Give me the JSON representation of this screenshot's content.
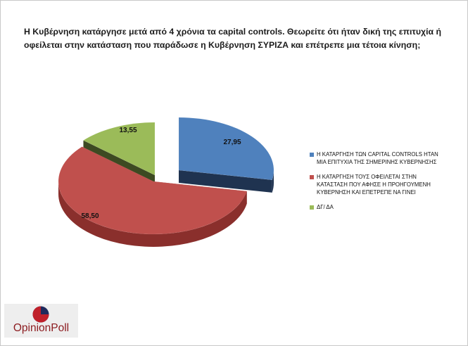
{
  "title": {
    "line1": "Η Κυβέρνηση  κατάργησε μετά από 4 χρόνια τα capital controls. Θεωρείτε ότι ήταν δική της επιτυχία ή",
    "line2": "οφείλεται στην κατάσταση που παράδωσε η Κυβέρνηση ΣΥΡΙΖΑ και επέτρεπε μια τέτοια κίνηση;"
  },
  "chart_data": {
    "type": "pie",
    "subtype": "3d-exploded",
    "legend_position": "right",
    "series": [
      {
        "name": "Η ΚΑΤΑΡΓΗΣΗ ΤΩΝ CAPITAL CONTROLS ΗΤΑΝ ΜΙΑ ΕΠΙΤΥΧΙΑ ΤΗΣ ΣΗΜΕΡΙΝΗΣ ΚΥΒΕΡΝΗΣΗΣ",
        "legend_lines": [
          "Η ΚΑΤΑΡΓΗΣΗ ΤΩΝ CAPITAL CONTROLS ΗΤΑΝ",
          "ΜΙΑ ΕΠΙΤΥΧΙΑ ΤΗΣ ΣΗΜΕΡΙΝΗΣ ΚΥΒΕΡΝΗΣΗΣ"
        ],
        "value": 27.95,
        "label": "27,95",
        "color": "#4f81bd",
        "side_color": "#1f3350"
      },
      {
        "name": "Η ΚΑΤΑΡΓΗΣΗ ΤΟΥΣ ΟΦΕΙΛΕΤΑΙ ΣΤΗΝ ΚΑΤΑΣΤΑΣΗ ΠΟΥ ΑΦΗΣΕ Η ΠΡΟΗΓΟΥΜΕΝΗ ΚΥΒΕΡΝΗΣΗ ΚΑΙ ΕΠΕΤΡΕΠΕ ΝΑ ΓΙΝΕΙ",
        "legend_lines": [
          "Η ΚΑΤΑΡΓΗΣΗ ΤΟΥΣ ΟΦΕΙΛΕΤΑΙ ΣΤΗΝ",
          "ΚΑΤΑΣΤΑΣΗ ΠΟΥ ΑΦΗΣΕ Η ΠΡΟΗΓΟΥΜΕΝΗ",
          "ΚΥΒΕΡΝΗΣΗ ΚΑΙ ΕΠΕΤΡΕΠΕ ΝΑ ΓΙΝΕΙ"
        ],
        "value": 58.5,
        "label": "58,50",
        "color": "#c0504d",
        "side_color": "#8a2f2c"
      },
      {
        "name": "ΔΓ/ ΔΑ",
        "legend_lines": [
          "ΔΓ/ ΔΑ"
        ],
        "value": 13.55,
        "label": "13,55",
        "color": "#9bbb59",
        "side_color": "#3d4a22"
      }
    ]
  },
  "logo": {
    "text": "OpinionPoll",
    "colors": {
      "red": "#c0202a",
      "navy": "#1f2a5c",
      "text": "#8c1b1f"
    }
  }
}
